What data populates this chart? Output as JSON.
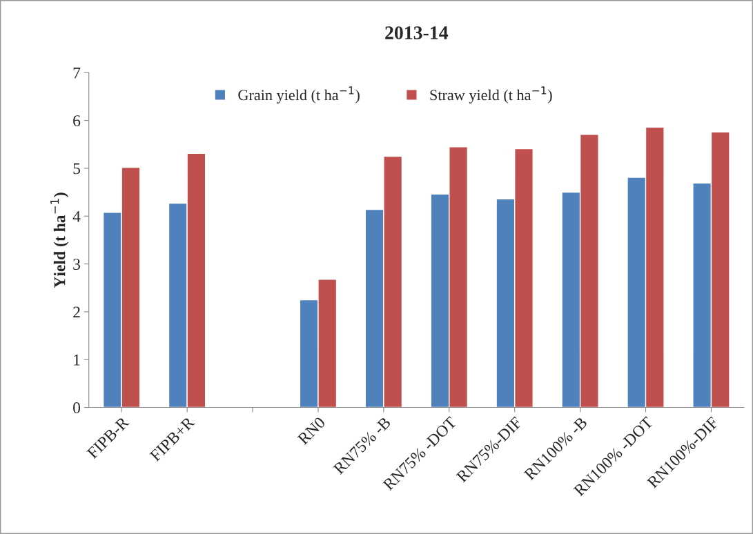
{
  "chart_data": {
    "type": "bar",
    "title": "2013-14",
    "ylabel": "Yield (t ha$^{−1}$)",
    "categories": [
      "FIPB-R",
      "FIPB+R",
      null,
      "RN0",
      "RN75% -B",
      "RN75% -DOT",
      "RN75%-DIF",
      "RN100% -B",
      "RN100% -DOT",
      "RN100%-DIF"
    ],
    "series": [
      {
        "name": "Grain yield (t ha$^{−1}$)",
        "color": "#4f81bd",
        "values": [
          4.08,
          4.27,
          null,
          2.25,
          4.14,
          4.46,
          4.36,
          4.5,
          4.81,
          4.69
        ]
      },
      {
        "name": "Straw yield (t ha$^{−1}$)",
        "color": "#c0504d",
        "values": [
          5.02,
          5.31,
          null,
          2.68,
          5.25,
          5.45,
          5.41,
          5.71,
          5.86,
          5.76
        ]
      }
    ],
    "ylim": [
      0,
      7
    ],
    "yticks": [
      0,
      1,
      2,
      3,
      4,
      5,
      6,
      7
    ],
    "grid": false,
    "legend": "top"
  }
}
